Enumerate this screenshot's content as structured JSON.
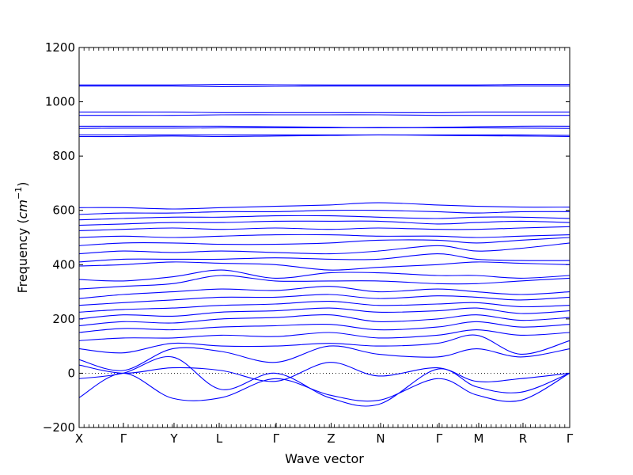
{
  "chart_data": {
    "type": "line",
    "xlabel": "Wave vector",
    "ylabel": "Frequency",
    "ylabel_unit_base": "cm",
    "ylabel_unit_exp": "−1",
    "ylim": [
      -200,
      1200
    ],
    "yticks": [
      -200,
      0,
      200,
      400,
      600,
      800,
      1000,
      1200
    ],
    "yticks_display": [
      "−200",
      "0",
      "200",
      "400",
      "600",
      "800",
      "1000",
      "1200"
    ],
    "high_symmetry_points": [
      {
        "label": "X",
        "pos": 0
      },
      {
        "label": "Γ",
        "pos": 0.0903
      },
      {
        "label": "Y",
        "pos": 0.1935
      },
      {
        "label": "L",
        "pos": 0.2855
      },
      {
        "label": "Γ",
        "pos": 0.4016
      },
      {
        "label": "Z",
        "pos": 0.5137
      },
      {
        "label": "N",
        "pos": 0.6145
      },
      {
        "label": "Γ",
        "pos": 0.7339
      },
      {
        "label": "M",
        "pos": 0.8145
      },
      {
        "label": "R",
        "pos": 0.9048
      },
      {
        "label": "Γ",
        "pos": 1
      }
    ],
    "zero_line": true,
    "line_color": "#0000ff",
    "series": [
      {
        "x": [
          0,
          0.09,
          0.19,
          0.29,
          0.4,
          0.51,
          0.61,
          0.73,
          0.81,
          0.9,
          1
        ],
        "y": [
          -90,
          0,
          -92,
          -90,
          -20,
          -80,
          -100,
          -20,
          -80,
          -100,
          0
        ]
      },
      {
        "x": [
          0,
          0.09,
          0.19,
          0.29,
          0.4,
          0.51,
          0.61,
          0.73,
          0.81,
          0.9,
          1
        ],
        "y": [
          -20,
          0,
          60,
          -60,
          0,
          -90,
          -115,
          15,
          -50,
          -70,
          0
        ]
      },
      {
        "x": [
          0,
          0.09,
          0.19,
          0.29,
          0.4,
          0.51,
          0.61,
          0.73,
          0.81,
          0.9,
          1
        ],
        "y": [
          30,
          0,
          20,
          10,
          -30,
          40,
          -10,
          20,
          -30,
          -20,
          0
        ]
      },
      {
        "x": [
          0,
          0.09,
          0.19,
          0.29,
          0.4,
          0.51,
          0.61,
          0.73,
          0.81,
          0.9,
          1
        ],
        "y": [
          50,
          10,
          90,
          80,
          40,
          100,
          70,
          60,
          90,
          60,
          90
        ]
      },
      {
        "x": [
          0,
          0.09,
          0.19,
          0.29,
          0.4,
          0.51,
          0.61,
          0.73,
          0.81,
          0.9,
          1
        ],
        "y": [
          90,
          75,
          110,
          100,
          100,
          110,
          100,
          110,
          140,
          70,
          120
        ]
      },
      {
        "x": [
          0,
          0.09,
          0.19,
          0.29,
          0.4,
          0.51,
          0.61,
          0.73,
          0.81,
          0.9,
          1
        ],
        "y": [
          120,
          130,
          130,
          140,
          135,
          150,
          130,
          140,
          160,
          140,
          150
        ]
      },
      {
        "x": [
          0,
          0.09,
          0.19,
          0.29,
          0.4,
          0.51,
          0.61,
          0.73,
          0.81,
          0.9,
          1
        ],
        "y": [
          150,
          165,
          160,
          170,
          175,
          180,
          160,
          170,
          190,
          170,
          180
        ]
      },
      {
        "x": [
          0,
          0.09,
          0.19,
          0.29,
          0.4,
          0.51,
          0.61,
          0.73,
          0.81,
          0.9,
          1
        ],
        "y": [
          175,
          190,
          185,
          200,
          205,
          215,
          190,
          200,
          215,
          195,
          205
        ]
      },
      {
        "x": [
          0,
          0.09,
          0.19,
          0.29,
          0.4,
          0.51,
          0.61,
          0.73,
          0.81,
          0.9,
          1
        ],
        "y": [
          200,
          215,
          210,
          225,
          230,
          240,
          225,
          230,
          240,
          220,
          230
        ]
      },
      {
        "x": [
          0,
          0.09,
          0.19,
          0.29,
          0.4,
          0.51,
          0.61,
          0.73,
          0.81,
          0.9,
          1
        ],
        "y": [
          225,
          235,
          240,
          250,
          255,
          265,
          250,
          255,
          260,
          245,
          250
        ]
      },
      {
        "x": [
          0,
          0.09,
          0.19,
          0.29,
          0.4,
          0.51,
          0.61,
          0.73,
          0.81,
          0.9,
          1
        ],
        "y": [
          250,
          260,
          270,
          280,
          280,
          290,
          275,
          285,
          280,
          270,
          280
        ]
      },
      {
        "x": [
          0,
          0.09,
          0.19,
          0.29,
          0.4,
          0.51,
          0.61,
          0.73,
          0.81,
          0.9,
          1
        ],
        "y": [
          275,
          290,
          300,
          310,
          305,
          320,
          300,
          310,
          300,
          290,
          300
        ]
      },
      {
        "x": [
          0,
          0.09,
          0.19,
          0.29,
          0.4,
          0.51,
          0.61,
          0.73,
          0.81,
          0.9,
          1
        ],
        "y": [
          310,
          320,
          330,
          360,
          340,
          340,
          340,
          330,
          330,
          340,
          350
        ]
      },
      {
        "x": [
          0,
          0.09,
          0.19,
          0.29,
          0.4,
          0.51,
          0.61,
          0.73,
          0.81,
          0.9,
          1
        ],
        "y": [
          345,
          340,
          355,
          380,
          350,
          370,
          370,
          360,
          360,
          350,
          360
        ]
      },
      {
        "x": [
          0,
          0.09,
          0.19,
          0.29,
          0.4,
          0.51,
          0.61,
          0.73,
          0.81,
          0.9,
          1
        ],
        "y": [
          395,
          400,
          410,
          405,
          400,
          380,
          390,
          400,
          410,
          405,
          400
        ]
      },
      {
        "x": [
          0,
          0.09,
          0.19,
          0.29,
          0.4,
          0.51,
          0.61,
          0.73,
          0.81,
          0.9,
          1
        ],
        "y": [
          410,
          420,
          420,
          420,
          425,
          420,
          420,
          440,
          420,
          415,
          415
        ]
      },
      {
        "x": [
          0,
          0.09,
          0.19,
          0.29,
          0.4,
          0.51,
          0.61,
          0.73,
          0.81,
          0.9,
          1
        ],
        "y": [
          440,
          450,
          445,
          450,
          445,
          440,
          450,
          470,
          450,
          460,
          480
        ]
      },
      {
        "x": [
          0,
          0.09,
          0.19,
          0.29,
          0.4,
          0.51,
          0.61,
          0.73,
          0.81,
          0.9,
          1
        ],
        "y": [
          470,
          480,
          480,
          475,
          475,
          480,
          490,
          490,
          480,
          490,
          500
        ]
      },
      {
        "x": [
          0,
          0.09,
          0.19,
          0.29,
          0.4,
          0.51,
          0.61,
          0.73,
          0.81,
          0.9,
          1
        ],
        "y": [
          500,
          505,
          500,
          505,
          510,
          510,
          505,
          505,
          500,
          505,
          510
        ]
      },
      {
        "x": [
          0,
          0.09,
          0.19,
          0.29,
          0.4,
          0.51,
          0.61,
          0.73,
          0.81,
          0.9,
          1
        ],
        "y": [
          525,
          530,
          535,
          530,
          535,
          530,
          535,
          530,
          530,
          535,
          540
        ]
      },
      {
        "x": [
          0,
          0.09,
          0.19,
          0.29,
          0.4,
          0.51,
          0.61,
          0.73,
          0.81,
          0.9,
          1
        ],
        "y": [
          545,
          550,
          555,
          555,
          560,
          560,
          560,
          550,
          555,
          560,
          555
        ]
      },
      {
        "x": [
          0,
          0.09,
          0.19,
          0.29,
          0.4,
          0.51,
          0.61,
          0.73,
          0.81,
          0.9,
          1
        ],
        "y": [
          565,
          570,
          575,
          575,
          580,
          580,
          575,
          570,
          575,
          575,
          570
        ]
      },
      {
        "x": [
          0,
          0.09,
          0.19,
          0.29,
          0.4,
          0.51,
          0.61,
          0.73,
          0.81,
          0.9,
          1
        ],
        "y": [
          585,
          590,
          590,
          595,
          595,
          600,
          600,
          595,
          590,
          595,
          595
        ]
      },
      {
        "x": [
          0,
          0.09,
          0.19,
          0.29,
          0.4,
          0.51,
          0.61,
          0.73,
          0.81,
          0.9,
          1
        ],
        "y": [
          610,
          610,
          605,
          610,
          615,
          620,
          628,
          620,
          615,
          612,
          612
        ]
      },
      {
        "x": [
          0,
          0.09,
          0.19,
          0.29,
          0.4,
          0.51,
          0.61,
          0.73,
          0.81,
          0.9,
          1
        ],
        "y": [
          872,
          872,
          874,
          872,
          874,
          876,
          878,
          876,
          875,
          874,
          872
        ]
      },
      {
        "x": [
          0,
          0.09,
          0.19,
          0.29,
          0.4,
          0.51,
          0.61,
          0.73,
          0.81,
          0.9,
          1
        ],
        "y": [
          878,
          878,
          878,
          878,
          878,
          878,
          878,
          878,
          878,
          878,
          876
        ]
      },
      {
        "x": [
          0,
          0.09,
          0.19,
          0.29,
          0.4,
          0.51,
          0.61,
          0.73,
          0.81,
          0.9,
          1
        ],
        "y": [
          902,
          903,
          903,
          904,
          904,
          904,
          905,
          904,
          904,
          903,
          902
        ]
      },
      {
        "x": [
          0,
          0.09,
          0.19,
          0.29,
          0.4,
          0.51,
          0.61,
          0.73,
          0.81,
          0.9,
          1
        ],
        "y": [
          910,
          910,
          910,
          910,
          908,
          906,
          904,
          906,
          908,
          910,
          910
        ]
      },
      {
        "x": [
          0,
          0.09,
          0.19,
          0.29,
          0.4,
          0.51,
          0.61,
          0.73,
          0.81,
          0.9,
          1
        ],
        "y": [
          950,
          950,
          950,
          952,
          952,
          952,
          952,
          950,
          950,
          950,
          950
        ]
      },
      {
        "x": [
          0,
          0.09,
          0.19,
          0.29,
          0.4,
          0.51,
          0.61,
          0.73,
          0.81,
          0.9,
          1
        ],
        "y": [
          962,
          962,
          962,
          960,
          960,
          960,
          960,
          960,
          962,
          962,
          962
        ]
      },
      {
        "x": [
          0,
          0.09,
          0.19,
          0.29,
          0.4,
          0.51,
          0.61,
          0.73,
          0.81,
          0.9,
          1
        ],
        "y": [
          1058,
          1058,
          1058,
          1056,
          1057,
          1058,
          1058,
          1058,
          1058,
          1058,
          1058
        ]
      },
      {
        "x": [
          0,
          0.09,
          0.19,
          0.29,
          0.4,
          0.51,
          0.61,
          0.73,
          0.81,
          0.9,
          1
        ],
        "y": [
          1062,
          1062,
          1062,
          1064,
          1063,
          1062,
          1062,
          1062,
          1062,
          1064,
          1064
        ]
      }
    ]
  }
}
